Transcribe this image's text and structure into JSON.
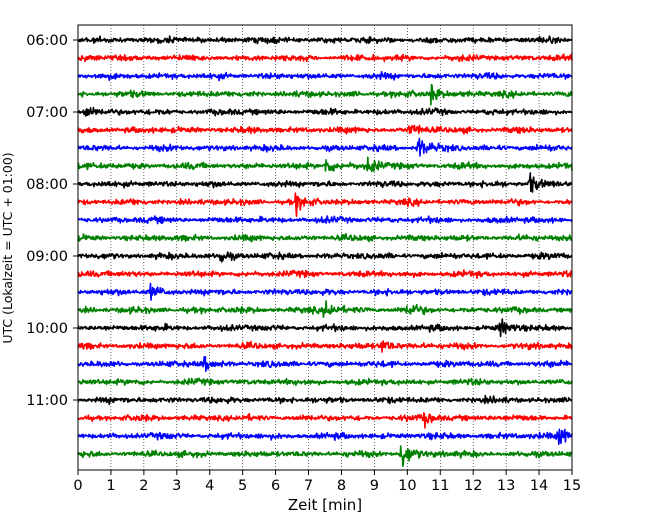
{
  "chart_data": {
    "type": "line",
    "xlabel": "Zeit  [min]",
    "ylabel": "UTC (Lokalzeit = UTC + 01:00)",
    "xlim": [
      0,
      15
    ],
    "x_ticks": [
      0,
      1,
      2,
      3,
      4,
      5,
      6,
      7,
      8,
      9,
      10,
      11,
      12,
      13,
      14,
      15
    ],
    "y_ticks": [
      {
        "label": "06:00",
        "trace": 0
      },
      {
        "label": "07:00",
        "trace": 4
      },
      {
        "label": "08:00",
        "trace": 8
      },
      {
        "label": "09:00",
        "trace": 12
      },
      {
        "label": "10:00",
        "trace": 16
      },
      {
        "label": "11:00",
        "trace": 20
      }
    ],
    "minutes_per_trace": 15,
    "trace_count": 24,
    "vertical_grid": "dotted",
    "colors": [
      "#000000",
      "#ff0000",
      "#0000ff",
      "#008000"
    ],
    "events": [
      {
        "trace": 3,
        "minute": 10.7,
        "amp": 1.0
      },
      {
        "trace": 4,
        "minute": 0.2,
        "amp": 0.8
      },
      {
        "trace": 5,
        "minute": 10.1,
        "amp": 0.6
      },
      {
        "trace": 6,
        "minute": 10.3,
        "amp": 1.2
      },
      {
        "trace": 7,
        "minute": 7.5,
        "amp": 1.0
      },
      {
        "trace": 7,
        "minute": 8.8,
        "amp": 0.8
      },
      {
        "trace": 8,
        "minute": 13.7,
        "amp": 1.0
      },
      {
        "trace": 9,
        "minute": 6.6,
        "amp": 0.8
      },
      {
        "trace": 12,
        "minute": 4.3,
        "amp": 0.8
      },
      {
        "trace": 14,
        "minute": 2.2,
        "amp": 0.7
      },
      {
        "trace": 15,
        "minute": 7.5,
        "amp": 1.0
      },
      {
        "trace": 15,
        "minute": 10.0,
        "amp": 0.7
      },
      {
        "trace": 16,
        "minute": 12.8,
        "amp": 0.8
      },
      {
        "trace": 17,
        "minute": 9.2,
        "amp": 0.8
      },
      {
        "trace": 18,
        "minute": 3.8,
        "amp": 0.6
      },
      {
        "trace": 21,
        "minute": 10.5,
        "amp": 0.6
      },
      {
        "trace": 22,
        "minute": 14.6,
        "amp": 1.2
      },
      {
        "trace": 23,
        "minute": 9.8,
        "amp": 1.6
      }
    ]
  }
}
